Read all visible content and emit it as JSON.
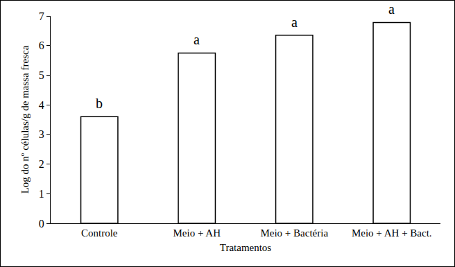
{
  "chart_data": {
    "type": "bar",
    "x_label": "Tratamentos",
    "y_label": "Log do nº células/g de massa fresca",
    "categories": [
      "Controle",
      "Meio + AH",
      "Meio + Bactéria",
      "Meio + AH + Bact."
    ],
    "values": [
      3.6,
      5.75,
      6.35,
      6.78
    ],
    "color": "#ffffff",
    "ylim": [
      0,
      7
    ],
    "yticks": [
      0,
      1,
      2,
      3,
      4,
      5,
      6,
      7
    ],
    "grid": false,
    "annotations": [
      {
        "x": "Controle",
        "text": "b"
      },
      {
        "x": "Meio + AH",
        "text": "a"
      },
      {
        "x": "Meio + Bactéria",
        "text": "a"
      },
      {
        "x": "Meio + AH + Bact.",
        "text": "a"
      }
    ]
  }
}
